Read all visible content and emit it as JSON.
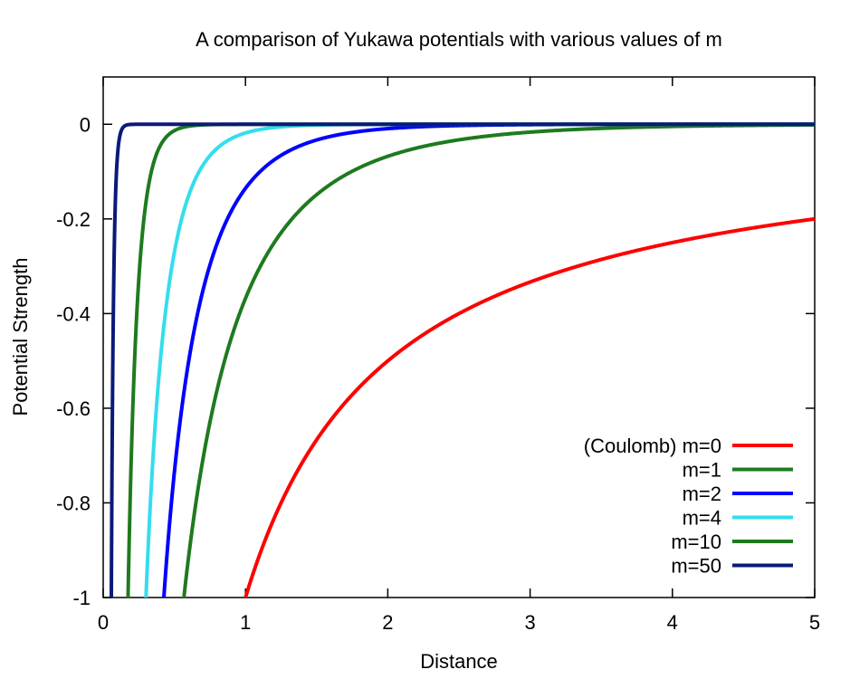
{
  "chart_data": {
    "type": "line",
    "title": "A comparison of Yukawa potentials with various values of m",
    "xlabel": "Distance",
    "ylabel": "Potential Strength",
    "xlim": [
      0,
      5
    ],
    "ylim": [
      -1,
      0.1
    ],
    "x_ticks": [
      0,
      1,
      2,
      3,
      4,
      5
    ],
    "x_tick_labels": [
      "0",
      "1",
      "2",
      "3",
      "4",
      "5"
    ],
    "y_ticks": [
      0,
      -0.2,
      -0.4,
      -0.6,
      -0.8,
      -1
    ],
    "y_tick_labels": [
      "0",
      "-0.2",
      "-0.4",
      "-0.6",
      "-0.8",
      "-1"
    ],
    "grid": false,
    "legend_position": "bottom-right",
    "function": "y = -exp(-m*x)/x",
    "series": [
      {
        "name": "(Coulomb) m=0",
        "m": 0,
        "color": "#ff0000"
      },
      {
        "name": "m=1",
        "m": 1,
        "color": "#1e7a1e"
      },
      {
        "name": "m=2",
        "m": 2,
        "color": "#0000ff"
      },
      {
        "name": "m=4",
        "m": 4,
        "color": "#33ddee"
      },
      {
        "name": "m=10",
        "m": 10,
        "color": "#1e7a1e"
      },
      {
        "name": "m=50",
        "m": 50,
        "color": "#0b1a78"
      }
    ]
  }
}
